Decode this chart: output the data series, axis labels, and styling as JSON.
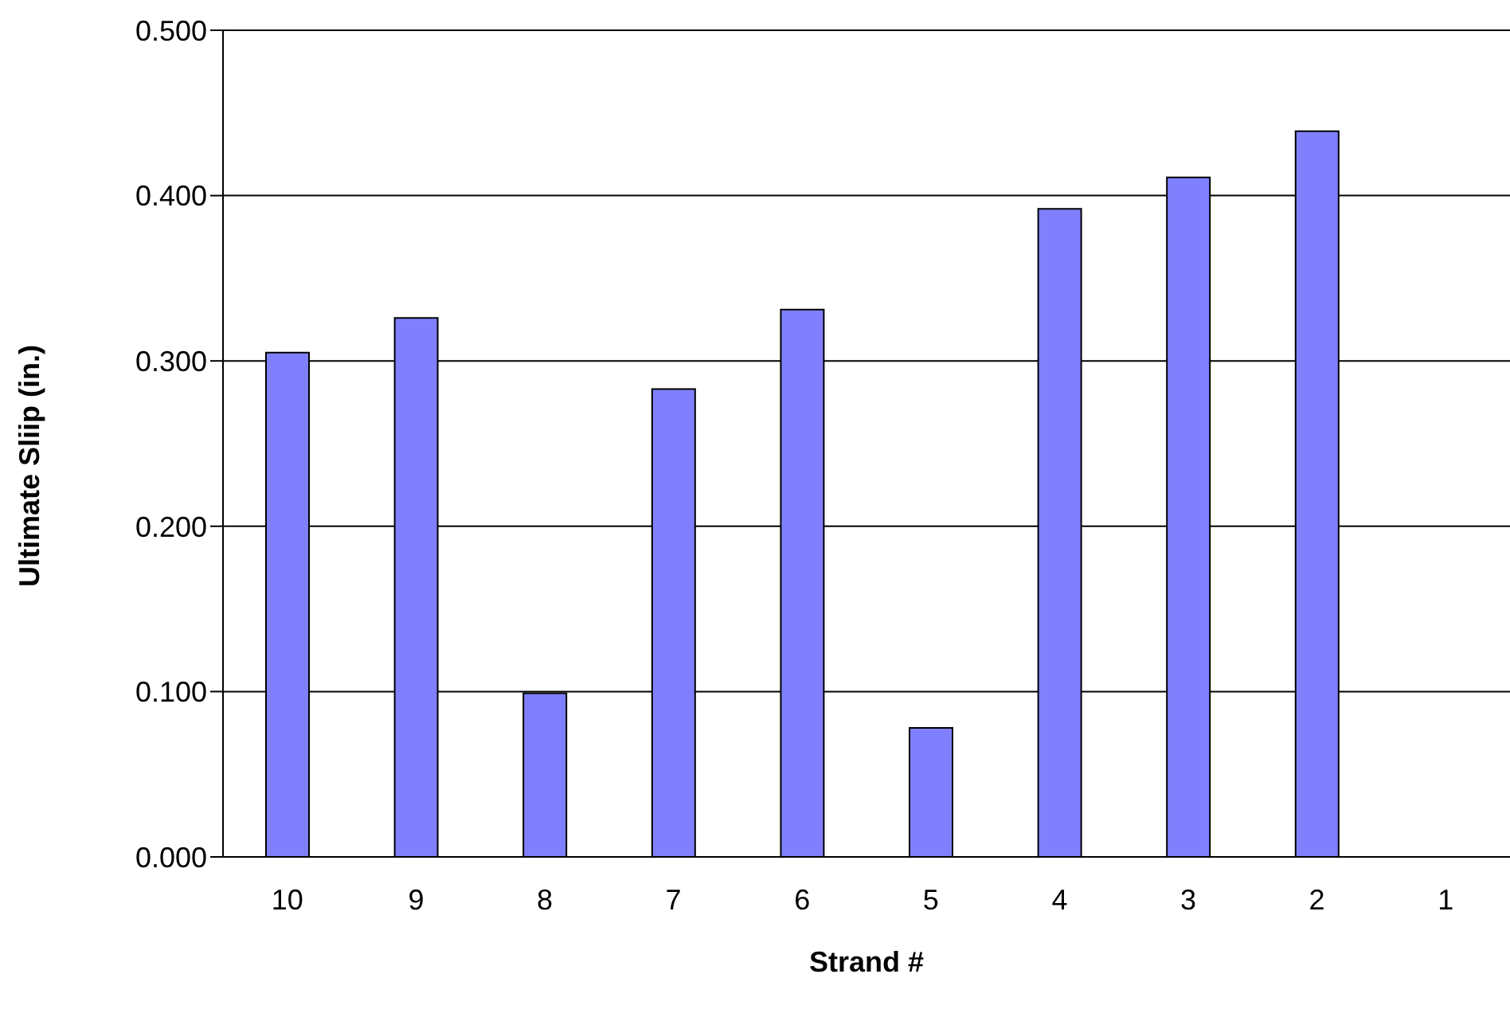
{
  "chart_data": {
    "type": "bar",
    "xlabel": "Strand #",
    "ylabel": "Ultimate Sliip (in.)",
    "categories": [
      "10",
      "9",
      "8",
      "7",
      "6",
      "5",
      "4",
      "3",
      "2",
      "1"
    ],
    "values": [
      0.305,
      0.326,
      0.099,
      0.283,
      0.331,
      0.078,
      0.392,
      0.411,
      0.439,
      null
    ],
    "color": "#8080ff",
    "ylim": [
      0,
      0.5
    ],
    "yticks": [
      {
        "value": 0,
        "label": "0.000"
      },
      {
        "value": 0.1,
        "label": "0.100"
      },
      {
        "value": 0.2,
        "label": "0.200"
      },
      {
        "value": 0.3,
        "label": "0.300"
      },
      {
        "value": 0.4,
        "label": "0.400"
      },
      {
        "value": 0.5,
        "label": "0.500"
      }
    ],
    "grid": "y",
    "legend": false
  }
}
